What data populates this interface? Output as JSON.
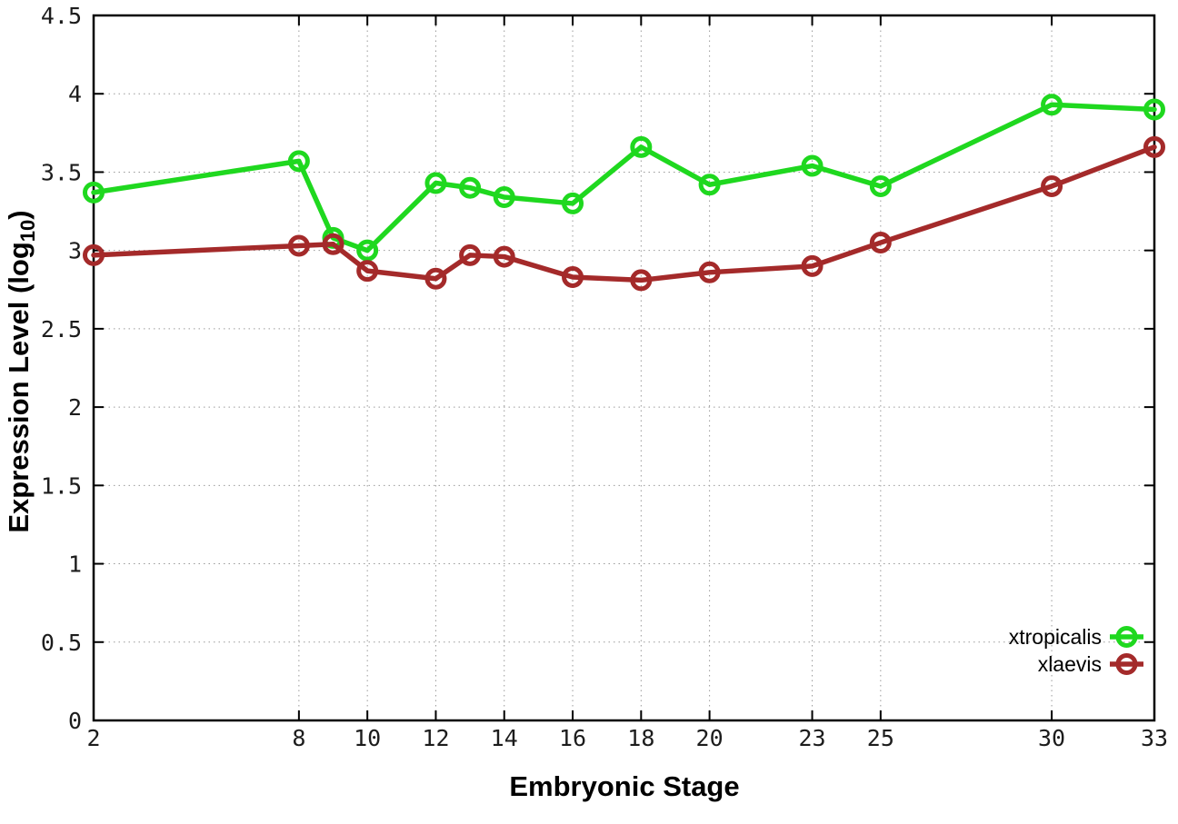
{
  "chart_data": {
    "type": "line",
    "title": "",
    "xlabel": "Embryonic Stage",
    "ylabel_prefix": "Expression Level (log",
    "ylabel_sub": "10",
    "ylabel_suffix": ")",
    "x": [
      2,
      8,
      9,
      10,
      12,
      13,
      14,
      16,
      18,
      20,
      23,
      25,
      30,
      33
    ],
    "series": [
      {
        "name": "xtropicalis",
        "color": "#1fd81f",
        "values": [
          3.37,
          3.57,
          3.08,
          3.0,
          3.43,
          3.4,
          3.34,
          3.3,
          3.66,
          3.42,
          3.54,
          3.41,
          3.93,
          3.9
        ]
      },
      {
        "name": "xlaevis",
        "color": "#a42a2a",
        "values": [
          2.97,
          3.03,
          3.04,
          2.87,
          2.82,
          2.97,
          2.96,
          2.83,
          2.81,
          2.86,
          2.9,
          3.05,
          3.41,
          3.66
        ]
      }
    ],
    "x_tick_labels": [
      2,
      8,
      10,
      12,
      14,
      16,
      18,
      20,
      23,
      25,
      30,
      33
    ],
    "y_tick_labels": [
      0,
      0.5,
      1,
      1.5,
      2,
      2.5,
      3,
      3.5,
      4,
      4.5
    ],
    "xlim": [
      2,
      33
    ],
    "ylim": [
      0,
      4.5
    ],
    "grid": true,
    "grid_style": "dotted",
    "legend_position": "inside-bottom-right",
    "marker": "open-circle",
    "colors": {
      "background": "#ffffff",
      "border": "#000000",
      "grid": "#9a9a9a",
      "tick_text": "#1c1c1c"
    }
  }
}
